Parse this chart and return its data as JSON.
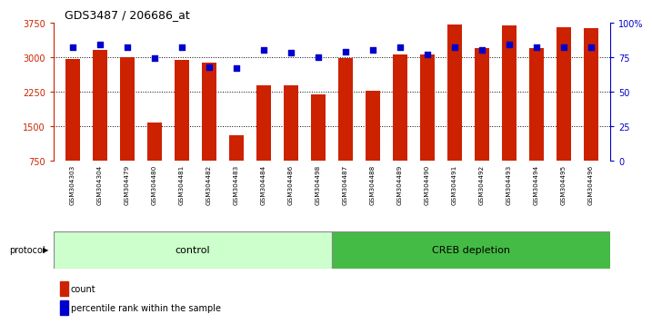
{
  "title": "GDS3487 / 206686_at",
  "samples": [
    "GSM304303",
    "GSM304304",
    "GSM304479",
    "GSM304480",
    "GSM304481",
    "GSM304482",
    "GSM304483",
    "GSM304484",
    "GSM304486",
    "GSM304498",
    "GSM304487",
    "GSM304488",
    "GSM304489",
    "GSM304490",
    "GSM304491",
    "GSM304492",
    "GSM304493",
    "GSM304494",
    "GSM304495",
    "GSM304496"
  ],
  "counts": [
    2950,
    3150,
    3000,
    1580,
    2940,
    2880,
    1310,
    2380,
    2390,
    2200,
    2970,
    2260,
    3050,
    3050,
    3700,
    3190,
    3680,
    3190,
    3650,
    3620
  ],
  "percentile_ranks": [
    82,
    84,
    82,
    74,
    82,
    68,
    67,
    80,
    78,
    75,
    79,
    80,
    82,
    77,
    82,
    80,
    84,
    82,
    82,
    82
  ],
  "n_control": 10,
  "bar_color": "#cc2200",
  "dot_color": "#0000cc",
  "ylim_left": [
    750,
    3750
  ],
  "ylim_right": [
    0,
    100
  ],
  "yticks_left": [
    750,
    1500,
    2250,
    3000,
    3750
  ],
  "yticks_right": [
    0,
    25,
    50,
    75,
    100
  ],
  "control_label": "control",
  "creb_label": "CREB depletion",
  "protocol_label": "protocol",
  "legend_count": "count",
  "legend_percentile": "percentile rank within the sample",
  "label_bg": "#d0d0d0",
  "control_bg": "#ccffcc",
  "creb_bg": "#44bb44",
  "bar_width": 0.55
}
